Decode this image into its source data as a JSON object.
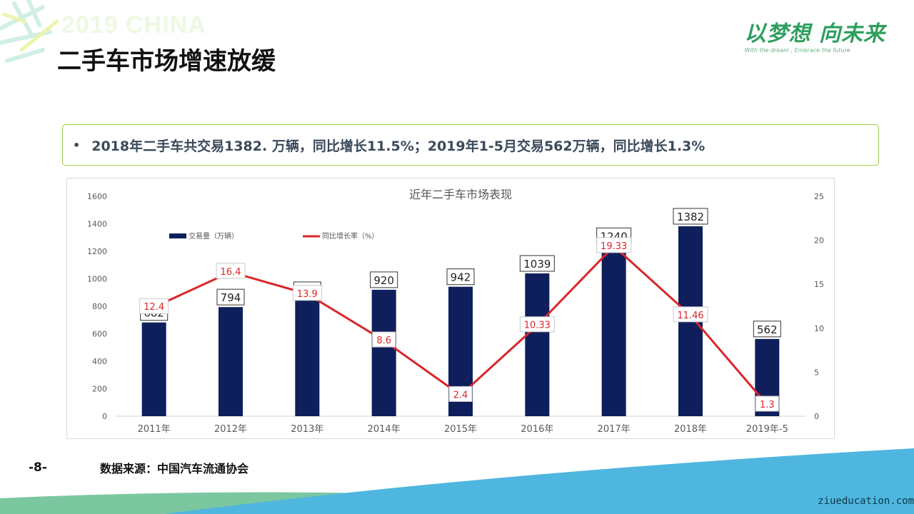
{
  "page": {
    "watermark": "2019 CHINA",
    "title": "二手车市场增速放缓",
    "logo": {
      "main": "以梦想 向未来",
      "sub": "With the dream , Embrace the future"
    },
    "callout": {
      "bullet": "•",
      "text": "2018年二手车共交易1382. 万辆，同比增长11.5%；2019年1-5月交易562万辆，同比增长1.3%"
    },
    "page_number": "-8-",
    "source": "数据来源：中国汽车流通协会",
    "site": "ziueducation.com"
  },
  "colors": {
    "bar": "#0e1f5c",
    "line": "#d9262a",
    "accent": "#9ccc46",
    "band_blue": "#4fb6df",
    "band_green": "#7bc7a0"
  },
  "chart_data": {
    "type": "bar+line",
    "title": "近年二手车市场表现",
    "categories": [
      "2011年",
      "2012年",
      "2013年",
      "2014年",
      "2015年",
      "2016年",
      "2017年",
      "2018年",
      "2019年-5"
    ],
    "series": [
      {
        "name": "交易量（万辆）",
        "type": "bar",
        "axis": "left",
        "values": [
          682,
          794,
          847,
          920,
          942,
          1039,
          1240,
          1382,
          562
        ]
      },
      {
        "name": "同比增长率（%）",
        "type": "line",
        "axis": "right",
        "values": [
          12.4,
          16.4,
          13.9,
          8.6,
          2.4,
          10.33,
          19.33,
          11.46,
          1.3
        ]
      }
    ],
    "y_left": {
      "min": 0,
      "max": 1600,
      "ticks": [
        0,
        200,
        400,
        600,
        800,
        1000,
        1200,
        1400,
        1600
      ]
    },
    "y_right": {
      "min": 0,
      "max": 25,
      "ticks": [
        0,
        5,
        10,
        15,
        20,
        25
      ]
    },
    "legend": "top-left",
    "grid": false
  }
}
